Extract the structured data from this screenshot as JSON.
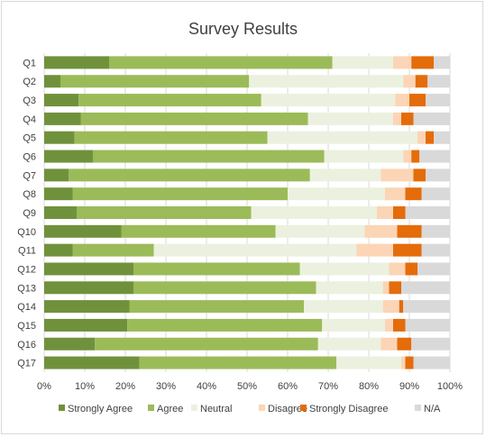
{
  "chart_data": {
    "type": "bar",
    "orientation": "horizontal-stacked-100",
    "title": "Survey Results",
    "categories": [
      "Q1",
      "Q2",
      "Q3",
      "Q4",
      "Q5",
      "Q6",
      "Q7",
      "Q8",
      "Q9",
      "Q10",
      "Q11",
      "Q12",
      "Q13",
      "Q14",
      "Q15",
      "Q16",
      "Q17"
    ],
    "series": [
      {
        "name": "Strongly Agree",
        "color": "#70913c",
        "values": [
          16,
          4,
          8.5,
          9,
          7.5,
          12,
          6,
          7,
          8,
          19,
          7,
          22,
          22,
          21,
          20.5,
          12.5,
          23.5
        ]
      },
      {
        "name": "Agree",
        "color": "#9bbb59",
        "values": [
          55,
          46.5,
          45,
          56,
          47.5,
          57,
          59.5,
          53,
          43,
          38,
          20,
          41,
          45,
          43,
          48,
          55,
          48.5
        ]
      },
      {
        "name": "Neutral",
        "color": "#ebf1de",
        "values": [
          15,
          38,
          33,
          21,
          37,
          19.5,
          17.5,
          24,
          31,
          22,
          50,
          22,
          16.5,
          19.5,
          15.5,
          15.5,
          16
        ]
      },
      {
        "name": "Disagree",
        "color": "#fbd5b5",
        "values": [
          4.5,
          3,
          3.5,
          2,
          2,
          2,
          8,
          5,
          4,
          8,
          9,
          4,
          1.5,
          4,
          2,
          4,
          1
        ]
      },
      {
        "name": "Strongly Disagree",
        "color": "#e46c0a",
        "values": [
          5.5,
          3,
          4,
          3,
          2,
          2,
          3,
          4,
          3,
          6,
          7,
          3,
          3,
          1,
          3,
          3.5,
          2
        ]
      },
      {
        "name": "N/A",
        "color": "#d9d9d9",
        "values": [
          4,
          5.5,
          6,
          9,
          4,
          7.5,
          6,
          7,
          11,
          7,
          7,
          8,
          12,
          11.5,
          11,
          9.5,
          9
        ]
      }
    ],
    "xlim": [
      0,
      100
    ],
    "xticks": [
      "0%",
      "10%",
      "20%",
      "30%",
      "40%",
      "50%",
      "60%",
      "70%",
      "80%",
      "90%",
      "100%"
    ],
    "grid": true,
    "legend_position": "bottom"
  }
}
